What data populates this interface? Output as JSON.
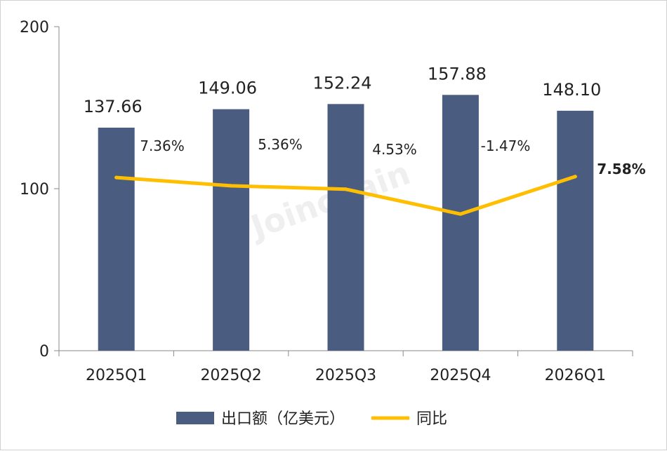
{
  "chart_data": {
    "type": "bar",
    "categories": [
      "2025Q1",
      "2025Q2",
      "2025Q3",
      "2025Q4",
      "2026Q1"
    ],
    "series": [
      {
        "name": "出口额（亿美元）",
        "type": "bar",
        "values": [
          137.66,
          149.06,
          152.24,
          157.88,
          148.1
        ],
        "labels": [
          "137.66",
          "149.06",
          "152.24",
          "157.88",
          "148.10"
        ],
        "color": "#4a5c80"
      },
      {
        "name": "同比",
        "type": "line",
        "values": [
          7.36,
          5.36,
          4.53,
          -1.47,
          7.58
        ],
        "labels": [
          "7.36%",
          "5.36%",
          "4.53%",
          "-1.47%",
          "7.58%"
        ],
        "color": "#ffbf00"
      }
    ],
    "yaxis": {
      "ticks": [
        "0",
        "100",
        "200"
      ],
      "ylim": [
        0,
        200
      ]
    },
    "grid": false,
    "legend_position": "bottom",
    "watermark": "Joinchain"
  }
}
